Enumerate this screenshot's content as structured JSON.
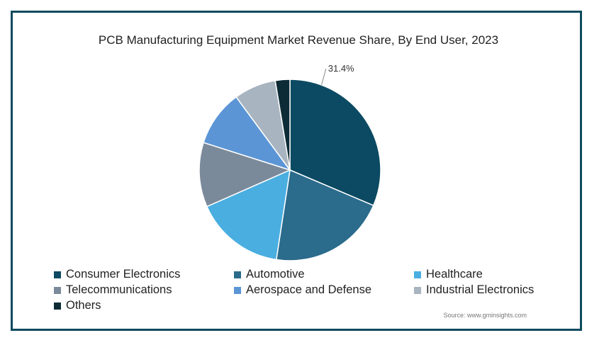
{
  "chart_data": {
    "type": "pie",
    "title": "PCB Manufacturing Equipment Market Revenue Share, By End User, 2023",
    "categories": [
      "Consumer Electronics",
      "Automotive",
      "Healthcare",
      "Telecommunications",
      "Aerospace and Defense",
      "Industrial Electronics",
      "Others"
    ],
    "values": [
      31.4,
      21.0,
      16.0,
      11.5,
      10.0,
      7.5,
      2.6
    ],
    "colors": [
      "#0b4a62",
      "#2b6b8c",
      "#4aaee0",
      "#7b8a9a",
      "#5b95d6",
      "#a8b4bf",
      "#0d2b36"
    ],
    "data_labels": [
      "31.4%",
      "",
      "",
      "",
      "",
      "",
      ""
    ],
    "legend_placement": "bottom",
    "source": "Source: www.gminsights.com"
  }
}
